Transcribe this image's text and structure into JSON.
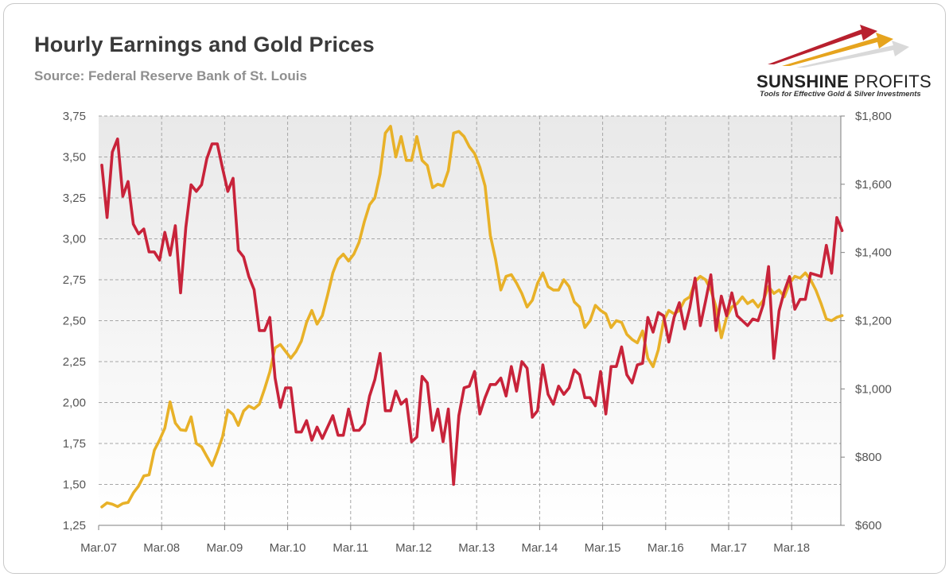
{
  "title": "Hourly Earnings and Gold Prices",
  "source": "Source: Federal Reserve Bank of St. Louis",
  "logo": {
    "name_bold": "SUNSHINE",
    "name_light": "PROFITS",
    "tagline": "Tools for Effective Gold & Silver Investments"
  },
  "colors": {
    "earnings": "#c8233a",
    "gold": "#e8b128",
    "plot_bg_top": "#e9e9e9",
    "plot_bg_bottom": "#ffffff",
    "grid": "#a6a6a6"
  },
  "chart_data": {
    "type": "line",
    "x_tick_labels": [
      "Mar.07",
      "Mar.08",
      "Mar.09",
      "Mar.10",
      "Mar.11",
      "Mar.12",
      "Mar.13",
      "Mar.14",
      "Mar.15",
      "Mar.16",
      "Mar.17",
      "Mar.18"
    ],
    "y_left": {
      "min": 1.25,
      "max": 3.75,
      "ticks": [
        "1,25",
        "1,50",
        "1,75",
        "2,00",
        "2,25",
        "2,50",
        "2,75",
        "3,00",
        "3,25",
        "3,50",
        "3,75"
      ]
    },
    "y_right": {
      "min": 600,
      "max": 1800,
      "ticks": [
        "$600",
        "$800",
        "$1,000",
        "$1,200",
        "$1,400",
        "$1,600",
        "$1,800"
      ]
    },
    "grid": true,
    "start_label": "Mar.07",
    "series": [
      {
        "axis": "left",
        "color": "#c8233a",
        "values": [
          3.45,
          3.13,
          3.53,
          3.61,
          3.26,
          3.35,
          3.09,
          3.03,
          3.06,
          2.92,
          2.92,
          2.87,
          3.04,
          2.9,
          3.08,
          2.67,
          3.07,
          3.33,
          3.29,
          3.33,
          3.49,
          3.58,
          3.58,
          3.43,
          3.29,
          3.37,
          2.93,
          2.89,
          2.77,
          2.69,
          2.44,
          2.44,
          2.52,
          2.15,
          1.97,
          2.09,
          2.09,
          1.82,
          1.82,
          1.89,
          1.77,
          1.85,
          1.78,
          1.85,
          1.92,
          1.8,
          1.8,
          1.96,
          1.83,
          1.83,
          1.87,
          2.04,
          2.14,
          2.3,
          1.95,
          1.95,
          2.07,
          1.99,
          2.02,
          1.76,
          1.79,
          2.16,
          2.12,
          1.83,
          1.96,
          1.76,
          1.96,
          1.5,
          1.92,
          2.09,
          2.1,
          2.19,
          1.93,
          2.03,
          2.11,
          2.11,
          2.15,
          2.04,
          2.22,
          2.07,
          2.25,
          2.21,
          1.91,
          1.95,
          2.23,
          2.05,
          1.99,
          2.1,
          2.05,
          2.09,
          2.2,
          2.17,
          2.03,
          2.03,
          1.98,
          2.19,
          1.93,
          2.22,
          2.22,
          2.34,
          2.17,
          2.12,
          2.23,
          2.24,
          2.52,
          2.43,
          2.55,
          2.53,
          2.37,
          2.52,
          2.61,
          2.45,
          2.58,
          2.76,
          2.47,
          2.62,
          2.78,
          2.44,
          2.65,
          2.53,
          2.67,
          2.53,
          2.5,
          2.47,
          2.51,
          2.5,
          2.6,
          2.83,
          2.27,
          2.56,
          2.68,
          2.77,
          2.57,
          2.63,
          2.63,
          2.79,
          2.78,
          2.77,
          2.96,
          2.79,
          3.13,
          3.05
        ]
      },
      {
        "axis": "right",
        "color": "#e8b128",
        "values": [
          654,
          666,
          662,
          655,
          664,
          667,
          695,
          715,
          745,
          748,
          820,
          850,
          885,
          962,
          900,
          880,
          878,
          918,
          840,
          830,
          802,
          775,
          815,
          860,
          938,
          925,
          893,
          935,
          950,
          942,
          955,
          1000,
          1050,
          1120,
          1130,
          1110,
          1090,
          1110,
          1140,
          1195,
          1230,
          1190,
          1215,
          1275,
          1340,
          1380,
          1395,
          1375,
          1395,
          1430,
          1490,
          1540,
          1560,
          1630,
          1750,
          1770,
          1680,
          1740,
          1670,
          1670,
          1740,
          1670,
          1655,
          1590,
          1600,
          1595,
          1640,
          1750,
          1755,
          1740,
          1710,
          1690,
          1650,
          1595,
          1450,
          1380,
          1290,
          1330,
          1335,
          1310,
          1280,
          1240,
          1260,
          1310,
          1340,
          1300,
          1290,
          1290,
          1320,
          1300,
          1255,
          1240,
          1180,
          1200,
          1245,
          1230,
          1220,
          1180,
          1200,
          1195,
          1160,
          1145,
          1135,
          1170,
          1090,
          1065,
          1115,
          1200,
          1230,
          1220,
          1230,
          1260,
          1270,
          1315,
          1330,
          1320,
          1290,
          1240,
          1150,
          1210,
          1240,
          1250,
          1270,
          1250,
          1260,
          1240,
          1260,
          1300,
          1280,
          1290,
          1270,
          1310,
          1330,
          1325,
          1340,
          1320,
          1290,
          1250,
          1205,
          1200,
          1210,
          1215
        ]
      }
    ]
  }
}
